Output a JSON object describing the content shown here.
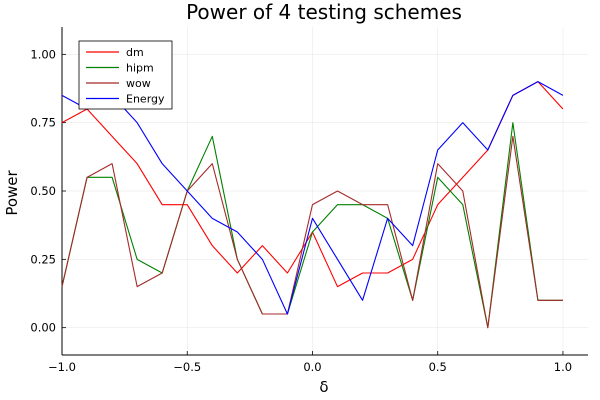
{
  "chart_data": {
    "type": "line",
    "title": "Power of 4 testing schemes",
    "xlabel": "δ",
    "ylabel": "Power",
    "xlim": [
      -1.0,
      1.1
    ],
    "ylim": [
      -0.1,
      1.1
    ],
    "xticks": [
      -1.0,
      -0.5,
      0.0,
      0.5,
      1.0
    ],
    "xtick_labels": [
      "−1.0",
      "−0.5",
      "0.0",
      "0.5",
      "1.0"
    ],
    "yticks": [
      0.0,
      0.25,
      0.5,
      0.75,
      1.0
    ],
    "ytick_labels": [
      "0.00",
      "0.25",
      "0.50",
      "0.75",
      "1.00"
    ],
    "grid": true,
    "legend_position": "top-left",
    "x": [
      -1.0,
      -0.9,
      -0.8,
      -0.7,
      -0.6,
      -0.5,
      -0.4,
      -0.3,
      -0.2,
      -0.1,
      0.0,
      0.1,
      0.2,
      0.3,
      0.4,
      0.5,
      0.6,
      0.7,
      0.8,
      0.9,
      1.0
    ],
    "series": [
      {
        "name": "dm",
        "color": "#ff0000",
        "values": [
          0.75,
          0.8,
          0.7,
          0.6,
          0.45,
          0.45,
          0.3,
          0.2,
          0.3,
          0.2,
          0.35,
          0.15,
          0.2,
          0.2,
          0.25,
          0.45,
          0.55,
          0.65,
          0.85,
          0.9,
          0.8
        ]
      },
      {
        "name": "hipm",
        "color": "#008000",
        "values": [
          0.15,
          0.55,
          0.55,
          0.25,
          0.2,
          0.5,
          0.7,
          0.25,
          0.05,
          0.05,
          0.35,
          0.45,
          0.45,
          0.4,
          0.1,
          0.55,
          0.45,
          0.0,
          0.75,
          0.1,
          0.1
        ]
      },
      {
        "name": "wow",
        "color": "#a52a2a",
        "values": [
          0.15,
          0.55,
          0.6,
          0.15,
          0.2,
          0.5,
          0.6,
          0.25,
          0.05,
          0.05,
          0.45,
          0.5,
          0.45,
          0.45,
          0.1,
          0.6,
          0.5,
          0.0,
          0.7,
          0.1,
          0.1
        ]
      },
      {
        "name": "Energy",
        "color": "#0000ff",
        "values": [
          0.85,
          0.8,
          0.85,
          0.75,
          0.6,
          0.5,
          0.4,
          0.35,
          0.25,
          0.05,
          0.4,
          0.25,
          0.1,
          0.4,
          0.3,
          0.65,
          0.75,
          0.65,
          0.85,
          0.9,
          0.85
        ]
      }
    ]
  }
}
